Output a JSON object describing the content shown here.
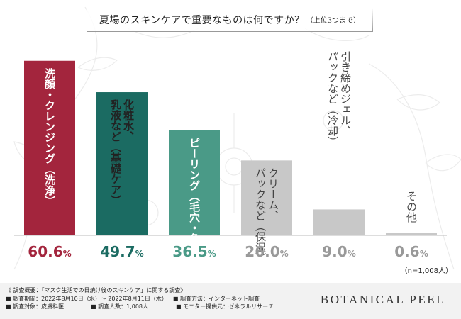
{
  "header": {
    "title": "夏場のスキンケアで重要なものは何ですか？",
    "subtitle": "（上位3つまで）"
  },
  "chart_data": {
    "type": "bar",
    "categories": [
      "洗顔・クレンジング（洗浄）",
      "化粧水、乳液など（基礎ケア）",
      "ピーリング（毛穴・角質ケア）",
      "クリーム、パックなど（保湿）",
      "引き締めジェル、パックなど（冷却）",
      "その他"
    ],
    "values": [
      60.6,
      49.7,
      36.5,
      26.0,
      9.0,
      0.6
    ],
    "unit": "%",
    "colors": [
      "#a3253d",
      "#1b6b62",
      "#4a9a87",
      "#c8c8c8",
      "#c8c8c8",
      "#c8c8c8"
    ],
    "label_colors": [
      "#ffffff",
      "#222222",
      "#ffffff",
      "#444444",
      "#444444",
      "#444444"
    ],
    "value_colors": [
      "#a3253d",
      "#1b6b62",
      "#4a9a87",
      "#999999",
      "#999999",
      "#999999"
    ],
    "ylim": [
      0,
      70
    ],
    "grid": false,
    "sample_note": "（n=1,008人）"
  },
  "survey": {
    "overview": "《 調査概要：「マスク生活での日焼け後のスキンケア」に関する調査》",
    "period": "■ 調査期間：2022年8月10日（水）～ 2022年8月11日（木）",
    "method": "■ 調査方法：インターネット調査",
    "target": "■ 調査対象：皮膚科医",
    "count": "■ 調査人数：1,008人",
    "provider": "■ モニター提供元：ゼネラルリサーチ"
  },
  "brand": "BOTANICAL PEEL"
}
